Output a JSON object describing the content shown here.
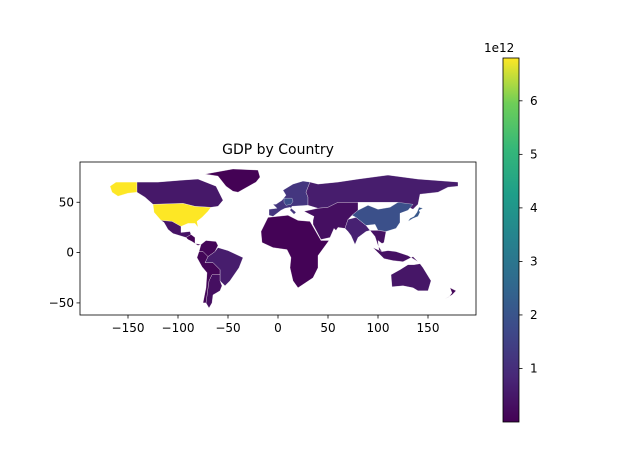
{
  "chart_data": {
    "type": "choropleth",
    "title": "GDP by Country",
    "xlabel": "",
    "ylabel": "",
    "xlim": [
      -198,
      198
    ],
    "ylim": [
      -62,
      90
    ],
    "x_ticks": [
      -150,
      -100,
      -50,
      0,
      50,
      100,
      150
    ],
    "y_ticks": [
      -50,
      0,
      50
    ],
    "x_tick_labels": [
      "−150",
      "−100",
      "−50",
      "0",
      "50",
      "100",
      "150"
    ],
    "y_tick_labels": [
      "−50",
      "0",
      "50"
    ],
    "colormap": "viridis",
    "colorbar": {
      "min": 0,
      "max": 6.8,
      "ticks": [
        1,
        2,
        3,
        4,
        5,
        6
      ],
      "tick_labels": [
        "1",
        "2",
        "3",
        "4",
        "5",
        "6"
      ],
      "offset_label": "1e12"
    },
    "regions": [
      {
        "name": "United States",
        "value": 6.8
      },
      {
        "name": "Alaska (United States)",
        "value": 6.8
      },
      {
        "name": "Canada",
        "value": 0.5
      },
      {
        "name": "Greenland",
        "value": 0.02
      },
      {
        "name": "Mexico",
        "value": 0.4
      },
      {
        "name": "Central America",
        "value": 0.05
      },
      {
        "name": "Colombia and Venezuela",
        "value": 0.1
      },
      {
        "name": "Brazil",
        "value": 0.6
      },
      {
        "name": "Argentina",
        "value": 0.3
      },
      {
        "name": "Andean countries",
        "value": 0.1
      },
      {
        "name": "Western Europe",
        "value": 1.2
      },
      {
        "name": "Germany",
        "value": 1.8
      },
      {
        "name": "Russia",
        "value": 0.6
      },
      {
        "name": "Middle East and Central Asia",
        "value": 0.3
      },
      {
        "name": "Africa",
        "value": 0.05
      },
      {
        "name": "India",
        "value": 0.7
      },
      {
        "name": "China",
        "value": 1.9
      },
      {
        "name": "Japan",
        "value": 2.1
      },
      {
        "name": "Southeast Asia",
        "value": 0.35
      },
      {
        "name": "Indonesia",
        "value": 0.35
      },
      {
        "name": "Australia",
        "value": 0.45
      },
      {
        "name": "New Zealand",
        "value": 0.1
      }
    ]
  }
}
